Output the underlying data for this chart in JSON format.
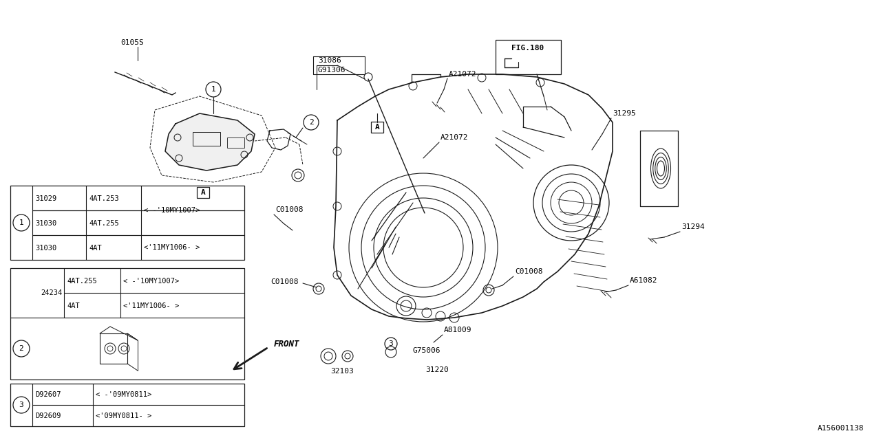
{
  "bg_color": "#ffffff",
  "line_color": "#1a1a1a",
  "fig_ref": "A156001138",
  "table1_rows": [
    [
      "31029",
      "4AT.253",
      "< -'10MY1007>"
    ],
    [
      "31030",
      "4AT.255",
      ""
    ],
    [
      "31030",
      "4AT",
      "<'11MY1006- >"
    ]
  ],
  "table2_part": "24234",
  "table2_rows": [
    [
      "4AT.255",
      "< -'10MY1007>"
    ],
    [
      "4AT",
      "<'11MY1006- >"
    ]
  ],
  "table3_rows": [
    [
      "D92607",
      "< -'09MY0811>"
    ],
    [
      "D92609",
      "<'09MY0811- >"
    ]
  ]
}
